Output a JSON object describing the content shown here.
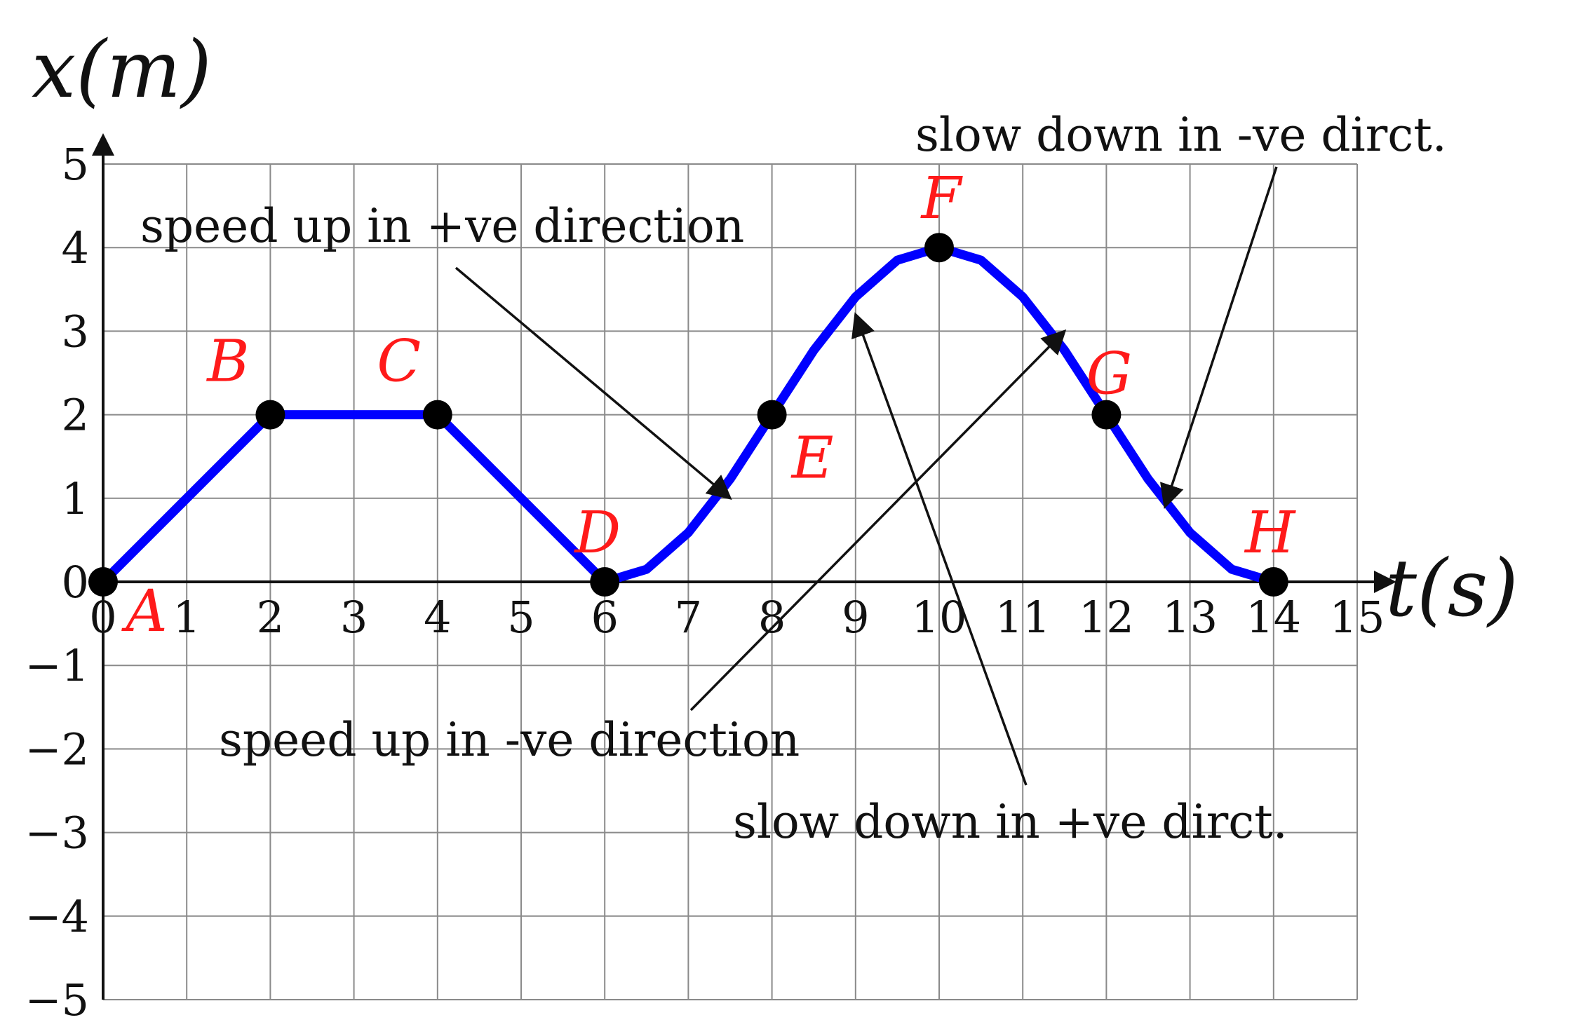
{
  "chart_data": {
    "type": "line",
    "xlabel": "t(s)",
    "ylabel": "x(m)",
    "xlim": [
      0,
      15
    ],
    "ylim": [
      -5,
      5
    ],
    "x_ticks": [
      "0",
      "1",
      "2",
      "3",
      "4",
      "5",
      "6",
      "7",
      "8",
      "9",
      "10",
      "11",
      "12",
      "13",
      "14",
      "15"
    ],
    "y_ticks": [
      "5",
      "4",
      "3",
      "2",
      "1",
      "0",
      "−1",
      "−2",
      "−3",
      "−4",
      "−5"
    ],
    "grid": true,
    "line_color": "#0000ff",
    "label_color": "#ff1a1a",
    "series": [
      {
        "x": [
          0,
          2,
          4,
          6,
          6.5,
          7,
          7.5,
          8,
          8.5,
          9,
          9.5,
          10,
          10.5,
          11,
          11.5,
          12,
          12.5,
          13,
          13.5,
          14
        ],
        "values": [
          0,
          2,
          2,
          0,
          0.15,
          0.59,
          1.23,
          2.0,
          2.77,
          3.41,
          3.85,
          4.0,
          3.85,
          3.41,
          2.77,
          2.0,
          1.23,
          0.59,
          0.15,
          0
        ]
      }
    ],
    "points": [
      {
        "label": "A",
        "x": 0,
        "y": 0
      },
      {
        "label": "B",
        "x": 2,
        "y": 2
      },
      {
        "label": "C",
        "x": 4,
        "y": 2
      },
      {
        "label": "D",
        "x": 6,
        "y": 0
      },
      {
        "label": "E",
        "x": 8,
        "y": 2
      },
      {
        "label": "F",
        "x": 10,
        "y": 4
      },
      {
        "label": "G",
        "x": 12,
        "y": 2
      },
      {
        "label": "H",
        "x": 14,
        "y": 0
      }
    ],
    "annotations": [
      {
        "text": "speed up in +ve direction",
        "target_x": 7.5,
        "target_y": 1.0
      },
      {
        "text": "slow down in -ve dirct.",
        "target_x": 12.7,
        "target_y": 0.9
      },
      {
        "text": "speed up in -ve direction",
        "target_x": 11.5,
        "target_y": 3.0
      },
      {
        "text": "slow down in +ve dirct.",
        "target_x": 9.0,
        "target_y": 3.2
      }
    ]
  }
}
